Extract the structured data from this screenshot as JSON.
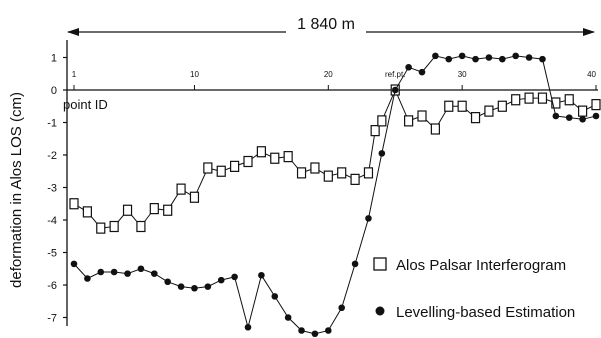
{
  "chart_data": {
    "type": "line",
    "title": "",
    "span_label": "1 840 m",
    "ylabel": "deformation in Alos LOS (cm)",
    "xlabel": "point ID",
    "ref_label": "ref.pt.",
    "ref_point_id": 25,
    "xlim": [
      1,
      40
    ],
    "ylim": [
      -7.6,
      1.5
    ],
    "x_ticks": [
      1,
      10,
      20,
      30,
      40
    ],
    "y_ticks": [
      1,
      0,
      -1,
      -2,
      -3,
      -4,
      -5,
      -6,
      -7
    ],
    "legend_position": "bottom-right",
    "series": [
      {
        "name": "Alos Palsar Interferogram",
        "marker": "open-square",
        "color": "#111111",
        "points": [
          {
            "x": 1,
            "y": -3.5
          },
          {
            "x": 2,
            "y": -3.75
          },
          {
            "x": 3,
            "y": -4.25
          },
          {
            "x": 4,
            "y": -4.2
          },
          {
            "x": 5,
            "y": -3.7
          },
          {
            "x": 6,
            "y": -4.2
          },
          {
            "x": 7,
            "y": -3.65
          },
          {
            "x": 8,
            "y": -3.7
          },
          {
            "x": 9,
            "y": -3.05
          },
          {
            "x": 10,
            "y": -3.3
          },
          {
            "x": 11,
            "y": -2.4
          },
          {
            "x": 12,
            "y": -2.5
          },
          {
            "x": 13,
            "y": -2.35
          },
          {
            "x": 14,
            "y": -2.2
          },
          {
            "x": 15,
            "y": -1.9
          },
          {
            "x": 16,
            "y": -2.1
          },
          {
            "x": 17,
            "y": -2.05
          },
          {
            "x": 18,
            "y": -2.55
          },
          {
            "x": 19,
            "y": -2.4
          },
          {
            "x": 20,
            "y": -2.65
          },
          {
            "x": 21,
            "y": -2.55
          },
          {
            "x": 22,
            "y": -2.75
          },
          {
            "x": 23,
            "y": -2.55
          },
          {
            "x": 23.5,
            "y": -1.25
          },
          {
            "x": 24,
            "y": -0.95
          },
          {
            "x": 25,
            "y": 0.0
          },
          {
            "x": 26,
            "y": -0.95
          },
          {
            "x": 27,
            "y": -0.8
          },
          {
            "x": 28,
            "y": -1.2
          },
          {
            "x": 29,
            "y": -0.5
          },
          {
            "x": 30,
            "y": -0.5
          },
          {
            "x": 31,
            "y": -0.85
          },
          {
            "x": 32,
            "y": -0.65
          },
          {
            "x": 33,
            "y": -0.5
          },
          {
            "x": 34,
            "y": -0.3
          },
          {
            "x": 35,
            "y": -0.25
          },
          {
            "x": 36,
            "y": -0.25
          },
          {
            "x": 37,
            "y": -0.4
          },
          {
            "x": 38,
            "y": -0.3
          },
          {
            "x": 39,
            "y": -0.65
          },
          {
            "x": 40,
            "y": -0.45
          }
        ]
      },
      {
        "name": "Levelling-based Estimation",
        "marker": "filled-circle",
        "color": "#111111",
        "points": [
          {
            "x": 1,
            "y": -5.35
          },
          {
            "x": 2,
            "y": -5.8
          },
          {
            "x": 3,
            "y": -5.6
          },
          {
            "x": 4,
            "y": -5.6
          },
          {
            "x": 5,
            "y": -5.65
          },
          {
            "x": 6,
            "y": -5.5
          },
          {
            "x": 7,
            "y": -5.65
          },
          {
            "x": 8,
            "y": -5.9
          },
          {
            "x": 9,
            "y": -6.05
          },
          {
            "x": 10,
            "y": -6.1
          },
          {
            "x": 11,
            "y": -6.05
          },
          {
            "x": 12,
            "y": -5.85
          },
          {
            "x": 13,
            "y": -5.75
          },
          {
            "x": 14,
            "y": -7.3
          },
          {
            "x": 15,
            "y": -5.7
          },
          {
            "x": 16,
            "y": -6.35
          },
          {
            "x": 17,
            "y": -7.0
          },
          {
            "x": 18,
            "y": -7.4
          },
          {
            "x": 19,
            "y": -7.5
          },
          {
            "x": 20,
            "y": -7.4
          },
          {
            "x": 21,
            "y": -6.7
          },
          {
            "x": 22,
            "y": -5.35
          },
          {
            "x": 23,
            "y": -3.95
          },
          {
            "x": 24,
            "y": -1.95
          },
          {
            "x": 25,
            "y": 0.0
          },
          {
            "x": 26,
            "y": 0.7
          },
          {
            "x": 27,
            "y": 0.55
          },
          {
            "x": 28,
            "y": 1.05
          },
          {
            "x": 29,
            "y": 0.95
          },
          {
            "x": 30,
            "y": 1.05
          },
          {
            "x": 31,
            "y": 0.95
          },
          {
            "x": 32,
            "y": 1.0
          },
          {
            "x": 33,
            "y": 0.95
          },
          {
            "x": 34,
            "y": 1.05
          },
          {
            "x": 35,
            "y": 1.0
          },
          {
            "x": 36,
            "y": 0.95
          },
          {
            "x": 37,
            "y": -0.8
          },
          {
            "x": 38,
            "y": -0.85
          },
          {
            "x": 39,
            "y": -0.9
          },
          {
            "x": 40,
            "y": -0.8
          }
        ]
      }
    ]
  }
}
